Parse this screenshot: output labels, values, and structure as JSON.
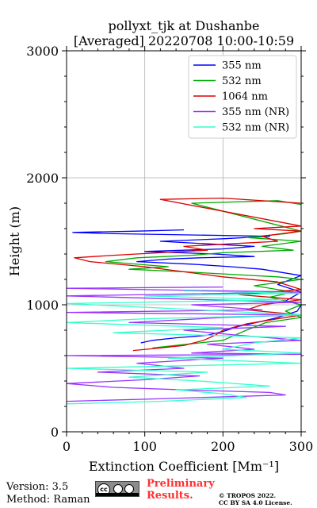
{
  "chart_data": {
    "type": "line",
    "title": "pollyxt_tjk at Dushanbe",
    "subtitle": "[Averaged] 20220708 10:00-10:59",
    "xlabel": "Extinction Coefficient [Mm⁻¹]",
    "ylabel": "Height (m)",
    "xlim": [
      0,
      300
    ],
    "ylim": [
      0,
      3000
    ],
    "xticks": [
      "0",
      "100",
      "200",
      "300"
    ],
    "yticks": [
      "0",
      "1000",
      "2000",
      "3000"
    ],
    "grid": true,
    "legend_position": "top-right",
    "series": [
      {
        "name": "355 nm",
        "color": "#0000ff",
        "points": [
          [
            95,
            700
          ],
          [
            110,
            720
          ],
          [
            140,
            740
          ],
          [
            180,
            760
          ],
          [
            200,
            790
          ],
          [
            220,
            830
          ],
          [
            250,
            870
          ],
          [
            270,
            900
          ],
          [
            295,
            950
          ],
          [
            300,
            1000
          ],
          [
            280,
            1030
          ],
          [
            300,
            1100
          ],
          [
            270,
            1160
          ],
          [
            300,
            1230
          ],
          [
            250,
            1280
          ],
          [
            210,
            1300
          ],
          [
            160,
            1320
          ],
          [
            90,
            1340
          ],
          [
            130,
            1360
          ],
          [
            170,
            1370
          ],
          [
            240,
            1380
          ],
          [
            190,
            1400
          ],
          [
            100,
            1420
          ],
          [
            200,
            1440
          ],
          [
            240,
            1460
          ],
          [
            180,
            1480
          ],
          [
            120,
            1500
          ],
          [
            200,
            1520
          ],
          [
            260,
            1540
          ],
          [
            60,
            1560
          ],
          [
            8,
            1570
          ],
          [
            90,
            1580
          ],
          [
            150,
            1590
          ]
        ]
      },
      {
        "name": "532 nm",
        "color": "#00aa00",
        "points": [
          [
            110,
            660
          ],
          [
            140,
            680
          ],
          [
            170,
            700
          ],
          [
            200,
            720
          ],
          [
            215,
            760
          ],
          [
            230,
            800
          ],
          [
            255,
            860
          ],
          [
            300,
            900
          ],
          [
            280,
            950
          ],
          [
            300,
            1000
          ],
          [
            260,
            1060
          ],
          [
            290,
            1100
          ],
          [
            240,
            1150
          ],
          [
            300,
            1200
          ],
          [
            270,
            1220
          ],
          [
            210,
            1240
          ],
          [
            150,
            1260
          ],
          [
            80,
            1280
          ],
          [
            130,
            1300
          ],
          [
            50,
            1340
          ],
          [
            90,
            1370
          ],
          [
            160,
            1390
          ],
          [
            200,
            1410
          ],
          [
            290,
            1430
          ],
          [
            250,
            1460
          ],
          [
            300,
            1500
          ],
          [
            230,
            1530
          ],
          [
            280,
            1560
          ],
          [
            300,
            1580
          ],
          [
            160,
            1800
          ],
          [
            270,
            1820
          ],
          [
            300,
            1790
          ]
        ]
      },
      {
        "name": "1064 nm",
        "color": "#dd0000",
        "points": [
          [
            85,
            640
          ],
          [
            120,
            660
          ],
          [
            150,
            680
          ],
          [
            175,
            720
          ],
          [
            190,
            760
          ],
          [
            200,
            800
          ],
          [
            230,
            850
          ],
          [
            260,
            880
          ],
          [
            300,
            920
          ],
          [
            230,
            960
          ],
          [
            250,
            1000
          ],
          [
            300,
            1040
          ],
          [
            220,
            1080
          ],
          [
            300,
            1120
          ],
          [
            270,
            1180
          ],
          [
            200,
            1220
          ],
          [
            150,
            1260
          ],
          [
            100,
            1300
          ],
          [
            30,
            1340
          ],
          [
            10,
            1370
          ],
          [
            60,
            1390
          ],
          [
            120,
            1410
          ],
          [
            180,
            1430
          ],
          [
            150,
            1460
          ],
          [
            210,
            1480
          ],
          [
            270,
            1500
          ],
          [
            250,
            1540
          ],
          [
            300,
            1580
          ],
          [
            240,
            1600
          ],
          [
            300,
            1620
          ],
          [
            120,
            1830
          ],
          [
            200,
            1840
          ],
          [
            300,
            1800
          ]
        ]
      },
      {
        "name": "355 nm (NR)",
        "color": "#9933ff",
        "points": [
          [
            0,
            240
          ],
          [
            120,
            260
          ],
          [
            280,
            290
          ],
          [
            260,
            310
          ],
          [
            150,
            330
          ],
          [
            60,
            350
          ],
          [
            0,
            380
          ],
          [
            100,
            410
          ],
          [
            170,
            440
          ],
          [
            40,
            470
          ],
          [
            150,
            500
          ],
          [
            90,
            540
          ],
          [
            200,
            580
          ],
          [
            0,
            600
          ],
          [
            300,
            610
          ],
          [
            160,
            620
          ],
          [
            240,
            650
          ],
          [
            180,
            690
          ],
          [
            300,
            720
          ],
          [
            220,
            760
          ],
          [
            150,
            800
          ],
          [
            280,
            830
          ],
          [
            80,
            860
          ],
          [
            200,
            900
          ],
          [
            300,
            920
          ],
          [
            0,
            940
          ],
          [
            250,
            960
          ],
          [
            160,
            1000
          ],
          [
            300,
            1020
          ],
          [
            0,
            1070
          ],
          [
            300,
            1100
          ],
          [
            0,
            1130
          ],
          [
            200,
            1140
          ]
        ]
      },
      {
        "name": "532 nm (NR)",
        "color": "#33ffcc",
        "points": [
          [
            0,
            220
          ],
          [
            120,
            240
          ],
          [
            230,
            270
          ],
          [
            200,
            300
          ],
          [
            140,
            330
          ],
          [
            260,
            360
          ],
          [
            170,
            400
          ],
          [
            80,
            430
          ],
          [
            180,
            470
          ],
          [
            0,
            500
          ],
          [
            300,
            540
          ],
          [
            130,
            580
          ],
          [
            300,
            620
          ],
          [
            200,
            650
          ],
          [
            240,
            700
          ],
          [
            300,
            740
          ],
          [
            60,
            780
          ],
          [
            200,
            820
          ],
          [
            0,
            860
          ],
          [
            100,
            890
          ],
          [
            300,
            920
          ],
          [
            170,
            960
          ],
          [
            0,
            1010
          ],
          [
            280,
            1040
          ],
          [
            100,
            1070
          ],
          [
            300,
            1090
          ],
          [
            150,
            1110
          ]
        ]
      }
    ]
  },
  "footer": {
    "version": "Version: 3.5",
    "method": "Method: Raman",
    "preliminary_line1": "Preliminary",
    "preliminary_line2": "Results.",
    "copyright_line1": "© TROPOS 2022.",
    "copyright_line2": "CC BY SA 4.0 License."
  }
}
